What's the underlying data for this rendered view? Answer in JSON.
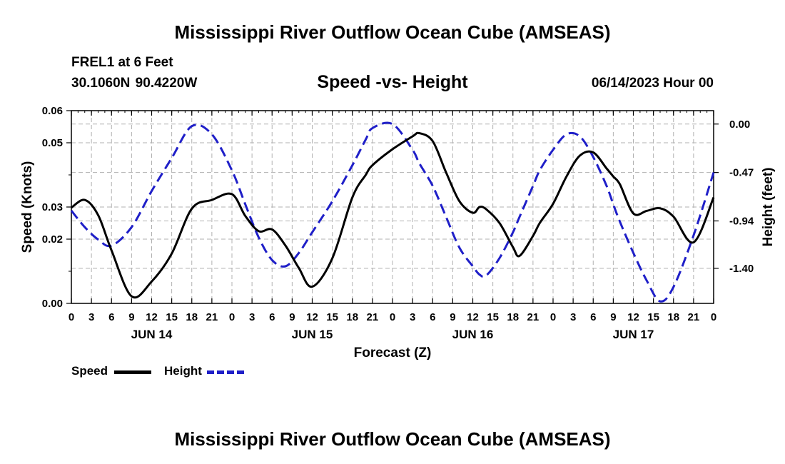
{
  "page": {
    "main_title": "Mississippi River Outflow Ocean Cube (AMSEAS)",
    "station_line": "FREL1 at 6 Feet",
    "coords_line": "30.1060N  90.4220W",
    "chart_title": "Speed -vs- Height",
    "datetime": "06/14/2023 Hour 00",
    "bottom_title": "Mississippi River Outflow Ocean Cube (AMSEAS)"
  },
  "colors": {
    "speed": "#000000",
    "height": "#1f1fc8",
    "grid": "#b0b0b0"
  },
  "legend": {
    "speed_label": "Speed",
    "height_label": "Height"
  },
  "chart_data": {
    "type": "line",
    "title": "Speed -vs- Height",
    "xlabel": "Forecast (Z)",
    "ylabel": "Speed (Knots)",
    "y2label": "Height (feet)",
    "xlim": [
      0,
      96
    ],
    "ylim": [
      0,
      0.06
    ],
    "y2lim": [
      -1.74,
      0.13
    ],
    "x_tick_labels": [
      "0",
      "3",
      "6",
      "9",
      "12",
      "15",
      "18",
      "21",
      "0",
      "3",
      "6",
      "9",
      "12",
      "15",
      "18",
      "21",
      "0",
      "3",
      "6",
      "9",
      "12",
      "15",
      "18",
      "21",
      "0",
      "3",
      "6",
      "9",
      "12",
      "15",
      "18",
      "21",
      "0"
    ],
    "y_ticks": [
      {
        "value": 0.0,
        "label": "0.00"
      },
      {
        "value": 0.02,
        "label": "0.02"
      },
      {
        "value": 0.03,
        "label": "0.03"
      },
      {
        "value": 0.05,
        "label": "0.05"
      },
      {
        "value": 0.06,
        "label": "0.06"
      }
    ],
    "y2_ticks": [
      {
        "value": 0.0,
        "label": "0.00"
      },
      {
        "value": -0.47,
        "label": "-0.47"
      },
      {
        "value": -0.94,
        "label": "-0.94"
      },
      {
        "value": -1.4,
        "label": "-1.40"
      }
    ],
    "day_labels": [
      {
        "x": 12,
        "label": "JUN 14"
      },
      {
        "x": 36,
        "label": "JUN 15"
      },
      {
        "x": 60,
        "label": "JUN 16"
      },
      {
        "x": 84,
        "label": "JUN 17"
      }
    ],
    "grid": true,
    "legend_position": "bottom-left",
    "series": [
      {
        "name": "Speed",
        "axis": "left",
        "style": "solid",
        "x": [
          0,
          2,
          4,
          6,
          9,
          12,
          15,
          18,
          21,
          24,
          26,
          28,
          30,
          32,
          34,
          36,
          39,
          42,
          44,
          45,
          48,
          51,
          52,
          54,
          56,
          58,
          60,
          61,
          62,
          64,
          66,
          67,
          69,
          70,
          72,
          74,
          76,
          78,
          80,
          81,
          82,
          84,
          86,
          88,
          90,
          93,
          96
        ],
        "values": [
          0.0298,
          0.0322,
          0.0275,
          0.0165,
          0.0022,
          0.0068,
          0.0155,
          0.0295,
          0.0322,
          0.034,
          0.0272,
          0.0225,
          0.023,
          0.018,
          0.011,
          0.0052,
          0.014,
          0.033,
          0.04,
          0.043,
          0.048,
          0.052,
          0.053,
          0.0505,
          0.0408,
          0.0318,
          0.0282,
          0.03,
          0.0293,
          0.025,
          0.0175,
          0.0148,
          0.021,
          0.025,
          0.031,
          0.0395,
          0.046,
          0.047,
          0.042,
          0.0395,
          0.037,
          0.028,
          0.0288,
          0.0296,
          0.027,
          0.019,
          0.033
        ]
      },
      {
        "name": "Height",
        "axis": "right",
        "style": "dashed",
        "x": [
          0,
          2,
          4,
          6,
          9,
          12,
          15,
          18,
          21,
          24,
          26,
          28,
          30,
          32,
          34,
          36,
          39,
          42,
          44,
          45,
          48,
          51,
          52,
          54,
          56,
          58,
          60,
          61,
          62,
          64,
          66,
          67,
          69,
          70,
          72,
          74,
          76,
          78,
          80,
          81,
          82,
          84,
          86,
          88,
          90,
          93,
          96
        ],
        "values": [
          -0.84,
          -1.0,
          -1.12,
          -1.18,
          -1.0,
          -0.65,
          -0.33,
          -0.02,
          -0.1,
          -0.45,
          -0.78,
          -1.1,
          -1.32,
          -1.38,
          -1.25,
          -1.05,
          -0.75,
          -0.4,
          -0.15,
          -0.04,
          0.0,
          -0.25,
          -0.38,
          -0.6,
          -0.9,
          -1.2,
          -1.38,
          -1.46,
          -1.47,
          -1.3,
          -1.05,
          -0.9,
          -0.6,
          -0.45,
          -0.25,
          -0.1,
          -0.12,
          -0.32,
          -0.6,
          -0.78,
          -0.95,
          -1.25,
          -1.52,
          -1.72,
          -1.58,
          -1.08,
          -0.47
        ]
      }
    ]
  }
}
